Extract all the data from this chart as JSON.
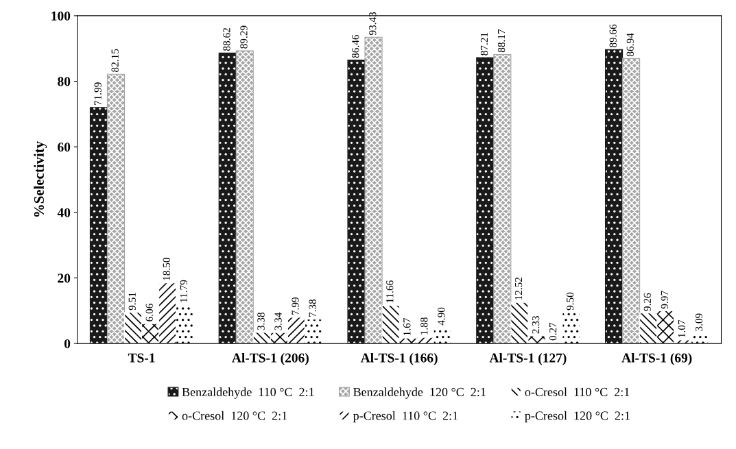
{
  "chart_data": {
    "type": "bar",
    "ylabel": "%Selectivity",
    "categories": [
      "TS-1",
      "Al-TS-1 (206)",
      "Al-TS-1 (166)",
      "Al-TS-1 (127)",
      "Al-TS-1 (69)"
    ],
    "series": [
      {
        "name": "Benzaldehyde  110 °C  2:1",
        "color": "#1a1a1a",
        "values": [
          71.99,
          88.62,
          86.46,
          87.21,
          89.66
        ],
        "value_labels": [
          "71.99",
          "88.62",
          "86.46",
          "87.21",
          "89.66"
        ]
      },
      {
        "name": "Benzaldehyde  120 °C  2:1",
        "color": "#a6a6a6",
        "values": [
          82.15,
          89.29,
          93.43,
          88.17,
          86.94
        ],
        "value_labels": [
          "82.15",
          "89.29",
          "93.43",
          "88.17",
          "86.94"
        ]
      },
      {
        "name": "o-Cresol  110 °C  2:1",
        "color": "#ffffff",
        "values": [
          9.51,
          3.38,
          11.66,
          12.52,
          9.26
        ],
        "value_labels": [
          "9.51",
          "3.38",
          "11.66",
          "12.52",
          "9.26"
        ]
      },
      {
        "name": "o-Cresol  120 °C  2:1",
        "color": "#ffffff",
        "values": [
          6.06,
          3.34,
          1.67,
          2.33,
          9.97
        ],
        "value_labels": [
          "6.06",
          "3.34",
          "1.67",
          "2.33",
          "9.97"
        ]
      },
      {
        "name": "p-Cresol  110 °C  2:1",
        "color": "#ffffff",
        "values": [
          18.5,
          7.99,
          1.88,
          0.27,
          1.07
        ],
        "value_labels": [
          "18.50",
          "7.99",
          "1.88",
          "0.27",
          "1.07"
        ]
      },
      {
        "name": "p-Cresol  120 °C  2:1",
        "color": "#ffffff",
        "values": [
          11.79,
          7.38,
          4.9,
          9.5,
          3.09
        ],
        "value_labels": [
          "11.79",
          "7.38",
          "4.90",
          "9.50",
          "3.09"
        ]
      }
    ],
    "ylim": [
      0,
      100
    ],
    "yticks": [
      0,
      20,
      40,
      60,
      80,
      100
    ],
    "grid": false,
    "legend": "bottom"
  }
}
